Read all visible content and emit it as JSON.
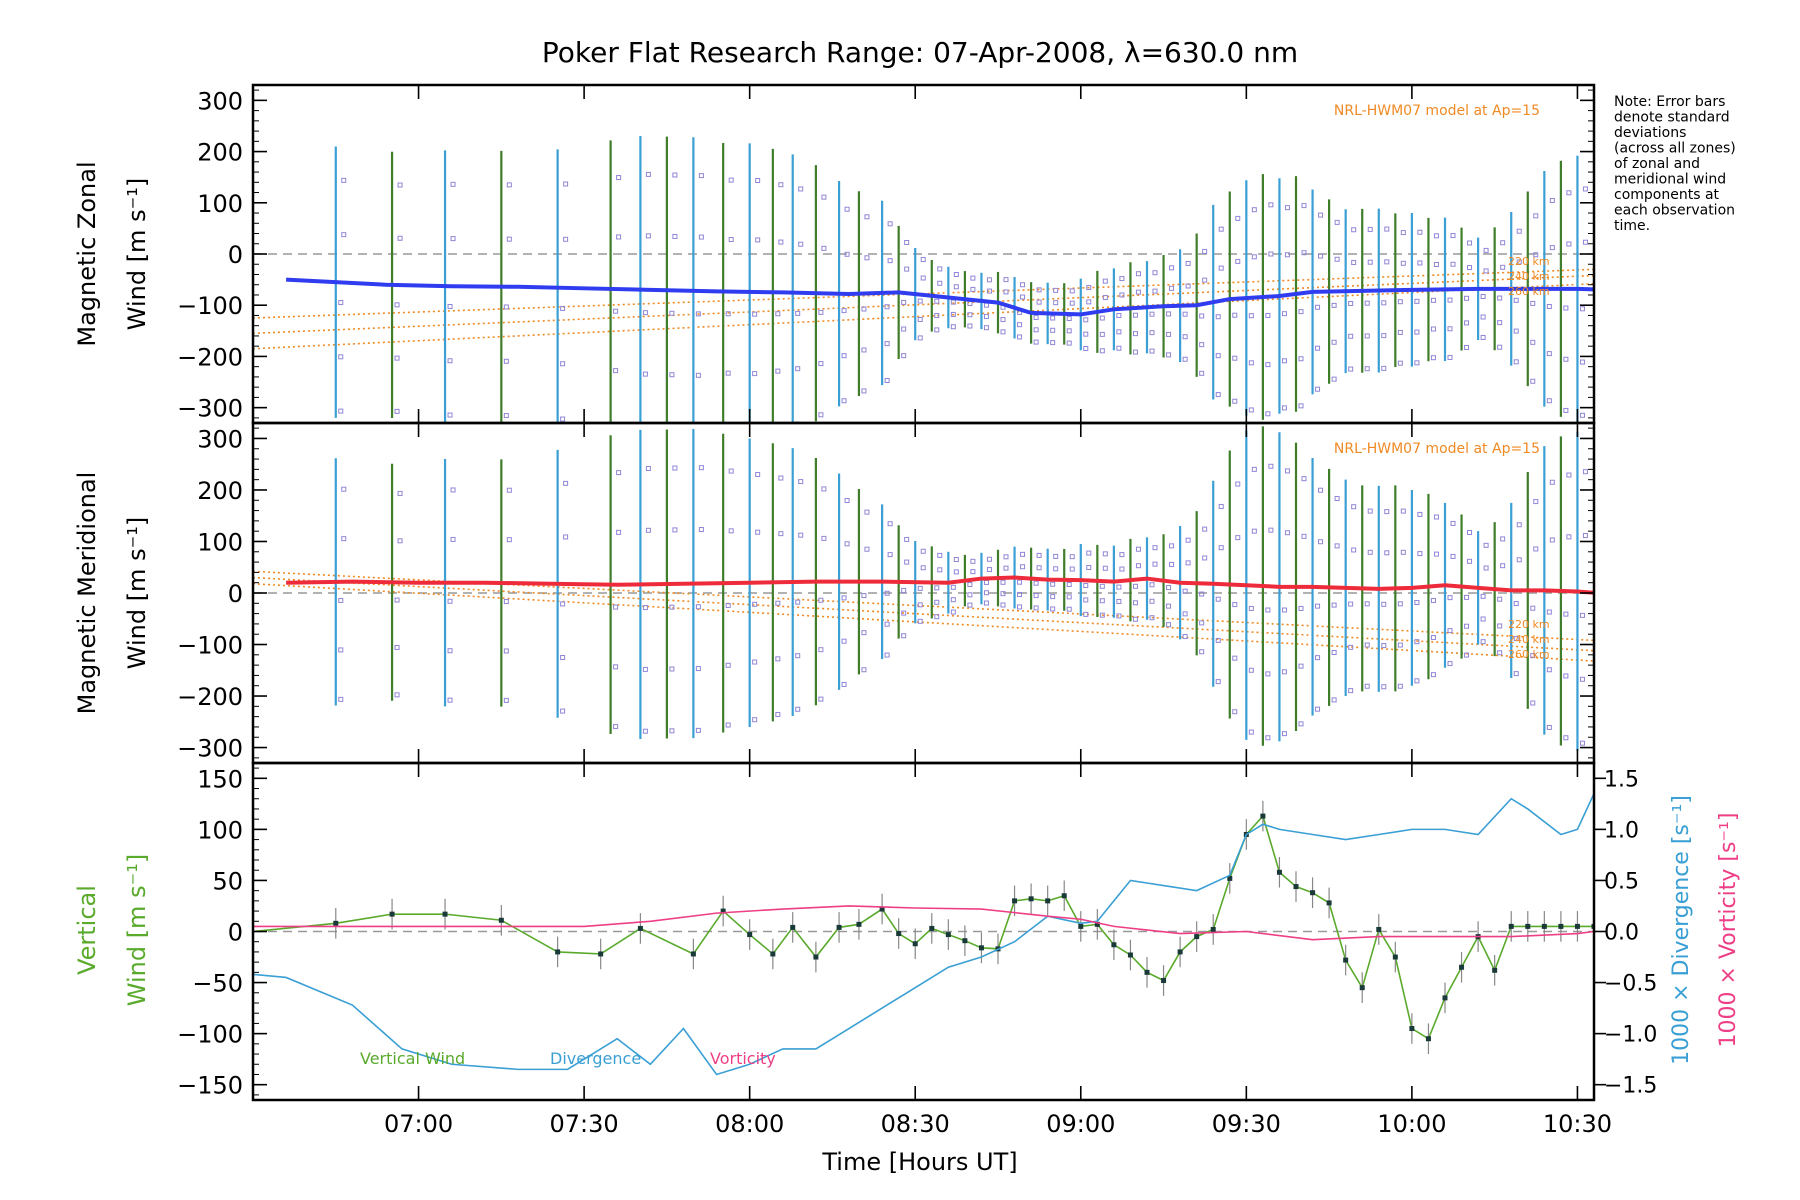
{
  "title": "Poker Flat Research Range: 07-Apr-2008, λ=630.0 nm",
  "note": [
    "Note: Error bars",
    "denote standard",
    "deviations",
    "(across all zones)",
    "of zonal and",
    "meridional wind",
    "components at",
    "each observation",
    "time."
  ],
  "colors": {
    "zonal": "#2f3cf0",
    "meridional": "#ee2b3a",
    "vertical": "#5aaa2c",
    "divergence": "#3a9fd4",
    "vorticity": "#ee3f86",
    "model": "#f08a24",
    "scatter": "#8f86d6",
    "errorbar_blue": "#3a9fd4",
    "errorbar_green": "#3f7d2a"
  },
  "chart_data": [
    {
      "type": "line",
      "panel": "zonal",
      "ylabel": [
        "Magnetic Zonal",
        "Wind [m s⁻¹]"
      ],
      "ylim": [
        -330,
        330
      ],
      "yticks": [
        "300",
        "200",
        "100",
        "0",
        "−100",
        "−200",
        "−300"
      ],
      "ytick_values": [
        300,
        200,
        100,
        0,
        -100,
        -200,
        -300
      ],
      "model_label": "NRL-HWM07 model at Ap=15",
      "model_alt_labels": [
        "220 km",
        "240 km",
        "260 km"
      ],
      "model_lines": [
        {
          "start": -125,
          "end": -30
        },
        {
          "start": -155,
          "end": -42
        },
        {
          "start": -185,
          "end": -58
        }
      ],
      "series": [
        {
          "name": "",
          "color": "zonal",
          "x": [
            6.6,
            6.9,
            7.1,
            7.3,
            7.5,
            7.7,
            7.9,
            8.1,
            8.3,
            8.45,
            8.6,
            8.75,
            8.85,
            9.0,
            9.1,
            9.25,
            9.35,
            9.45,
            9.6,
            9.7,
            9.85,
            10.0,
            10.2,
            10.35,
            10.5,
            10.6
          ],
          "y": [
            -50,
            -60,
            -63,
            -64,
            -67,
            -70,
            -73,
            -75,
            -78,
            -75,
            -85,
            -95,
            -115,
            -118,
            -108,
            -102,
            -100,
            -88,
            -82,
            -74,
            -72,
            -70,
            -68,
            -68,
            -68,
            -70
          ]
        }
      ],
      "obs_times": [
        6.75,
        6.92,
        7.08,
        7.25,
        7.42,
        7.58,
        7.67,
        7.75,
        7.83,
        7.92,
        8.0,
        8.07,
        8.13,
        8.2,
        8.27,
        8.33,
        8.4,
        8.45,
        8.5,
        8.55,
        8.6,
        8.65,
        8.7,
        8.75,
        8.8,
        8.85,
        8.9,
        8.95,
        9.0,
        9.05,
        9.1,
        9.15,
        9.2,
        9.25,
        9.3,
        9.35,
        9.4,
        9.45,
        9.5,
        9.55,
        9.6,
        9.65,
        9.7,
        9.75,
        9.8,
        9.85,
        9.9,
        9.95,
        10.0,
        10.05,
        10.1,
        10.15,
        10.2,
        10.25,
        10.3,
        10.35,
        10.4,
        10.45,
        10.5
      ],
      "error_half_widths": [
        265,
        260,
        265,
        265,
        270,
        290,
        300,
        300,
        300,
        290,
        290,
        280,
        270,
        250,
        220,
        200,
        180,
        130,
        90,
        70,
        60,
        55,
        55,
        60,
        60,
        60,
        60,
        60,
        70,
        80,
        80,
        90,
        90,
        100,
        110,
        140,
        190,
        210,
        230,
        240,
        230,
        230,
        200,
        180,
        160,
        160,
        160,
        150,
        150,
        140,
        140,
        120,
        100,
        120,
        150,
        190,
        230,
        250,
        260
      ]
    },
    {
      "type": "line",
      "panel": "meridional",
      "ylabel": [
        "Magnetic Meridional",
        "Wind [m s⁻¹]"
      ],
      "ylim": [
        -330,
        330
      ],
      "yticks": [
        "300",
        "200",
        "100",
        "0",
        "−100",
        "−200",
        "−300"
      ],
      "ytick_values": [
        300,
        200,
        100,
        0,
        -100,
        -200,
        -300
      ],
      "model_label": "NRL-HWM07 model at Ap=15",
      "model_alt_labels": [
        "220 km",
        "240 km",
        "260 km"
      ],
      "model_lines": [
        {
          "start": 42,
          "end": -92
        },
        {
          "start": 30,
          "end": -112
        },
        {
          "start": 18,
          "end": -132
        }
      ],
      "series": [
        {
          "name": "",
          "color": "meridional",
          "x": [
            6.6,
            6.8,
            7.0,
            7.2,
            7.4,
            7.6,
            7.8,
            8.0,
            8.2,
            8.4,
            8.6,
            8.7,
            8.8,
            8.9,
            9.0,
            9.1,
            9.2,
            9.3,
            9.4,
            9.5,
            9.6,
            9.7,
            9.8,
            9.9,
            10.0,
            10.1,
            10.2,
            10.3,
            10.4,
            10.5,
            10.6
          ],
          "y": [
            20,
            22,
            20,
            20,
            18,
            16,
            18,
            20,
            22,
            22,
            20,
            28,
            30,
            26,
            25,
            22,
            28,
            20,
            18,
            15,
            12,
            12,
            10,
            8,
            10,
            15,
            10,
            5,
            5,
            3,
            -2
          ]
        }
      ],
      "obs_times": [
        6.75,
        6.92,
        7.08,
        7.25,
        7.42,
        7.58,
        7.67,
        7.75,
        7.83,
        7.92,
        8.0,
        8.07,
        8.13,
        8.2,
        8.27,
        8.33,
        8.4,
        8.45,
        8.5,
        8.55,
        8.6,
        8.65,
        8.7,
        8.75,
        8.8,
        8.85,
        8.9,
        8.95,
        9.0,
        9.05,
        9.1,
        9.15,
        9.2,
        9.25,
        9.3,
        9.35,
        9.4,
        9.45,
        9.5,
        9.55,
        9.6,
        9.65,
        9.7,
        9.75,
        9.8,
        9.85,
        9.9,
        9.95,
        10.0,
        10.05,
        10.1,
        10.15,
        10.2,
        10.25,
        10.3,
        10.35,
        10.4,
        10.45,
        10.5
      ],
      "error_half_widths": [
        240,
        230,
        240,
        240,
        260,
        290,
        300,
        300,
        300,
        290,
        280,
        270,
        260,
        240,
        210,
        180,
        150,
        110,
        80,
        70,
        60,
        50,
        50,
        55,
        60,
        60,
        60,
        60,
        70,
        70,
        70,
        80,
        80,
        90,
        110,
        140,
        200,
        260,
        300,
        310,
        300,
        280,
        250,
        230,
        210,
        200,
        200,
        200,
        190,
        180,
        160,
        140,
        110,
        130,
        170,
        230,
        280,
        300,
        310
      ]
    },
    {
      "type": "line",
      "panel": "vertical",
      "ylabel_left": [
        "Vertical",
        "Wind [m s⁻¹]"
      ],
      "ylabel_right": [
        "1000 × Divergence [s⁻¹]",
        "1000 × Vorticity [s⁻¹]"
      ],
      "ylim": [
        -165,
        165
      ],
      "yticks": [
        "150",
        "100",
        "50",
        "0",
        "−50",
        "−100",
        "−150"
      ],
      "ytick_values": [
        150,
        100,
        50,
        0,
        -50,
        -100,
        -150
      ],
      "y2lim": [
        -1.65,
        1.65
      ],
      "y2ticks": [
        "1.5",
        "1.0",
        "0.5",
        "0.0",
        "−0.5",
        "−1.0",
        "−1.5"
      ],
      "y2tick_values": [
        1.5,
        1.0,
        0.5,
        0.0,
        -0.5,
        -1.0,
        -1.5
      ],
      "legend": [
        {
          "label": "Vertical Wind",
          "color": "vertical"
        },
        {
          "label": "Divergence",
          "color": "divergence"
        },
        {
          "label": "Vorticity",
          "color": "vorticity"
        }
      ],
      "series": [
        {
          "name": "Vertical Wind",
          "color": "vertical",
          "axis": "left",
          "x": [
            6.5,
            6.75,
            6.92,
            7.08,
            7.25,
            7.42,
            7.55,
            7.67,
            7.83,
            7.92,
            8.0,
            8.07,
            8.13,
            8.2,
            8.27,
            8.33,
            8.4,
            8.45,
            8.5,
            8.55,
            8.6,
            8.65,
            8.7,
            8.75,
            8.8,
            8.85,
            8.9,
            8.95,
            9.0,
            9.05,
            9.1,
            9.15,
            9.2,
            9.25,
            9.3,
            9.35,
            9.4,
            9.45,
            9.5,
            9.55,
            9.6,
            9.65,
            9.7,
            9.75,
            9.8,
            9.85,
            9.9,
            9.95,
            10.0,
            10.05,
            10.1,
            10.15,
            10.2,
            10.25,
            10.3,
            10.35,
            10.4,
            10.45,
            10.5,
            10.55
          ],
          "y": [
            0,
            8,
            17,
            17,
            11,
            -20,
            -22,
            3,
            -22,
            20,
            -3,
            -22,
            4,
            -25,
            4,
            7,
            22,
            -2,
            -12,
            3,
            -3,
            -9,
            -16,
            -17,
            30,
            32,
            30,
            35,
            5,
            7,
            -13,
            -23,
            -40,
            -48,
            -20,
            -5,
            2,
            52,
            95,
            113,
            58,
            44,
            38,
            28,
            -28,
            -55,
            2,
            -25,
            -95,
            -105,
            -65,
            -35,
            -5,
            -38,
            5,
            5,
            5,
            5,
            5,
            5
          ],
          "yerr": 15
        },
        {
          "name": "Divergence",
          "color": "divergence",
          "axis": "right",
          "x": [
            6.5,
            6.6,
            6.8,
            6.95,
            7.1,
            7.3,
            7.45,
            7.6,
            7.7,
            7.8,
            7.9,
            8.0,
            8.1,
            8.2,
            8.3,
            8.4,
            8.5,
            8.6,
            8.7,
            8.8,
            8.9,
            9.0,
            9.05,
            9.15,
            9.25,
            9.35,
            9.45,
            9.5,
            9.55,
            9.6,
            9.7,
            9.8,
            9.9,
            10.0,
            10.1,
            10.2,
            10.3,
            10.35,
            10.45,
            10.5,
            10.55
          ],
          "y": [
            -0.42,
            -0.45,
            -0.72,
            -1.15,
            -1.3,
            -1.35,
            -1.35,
            -1.05,
            -1.3,
            -0.95,
            -1.4,
            -1.3,
            -1.15,
            -1.15,
            -0.95,
            -0.75,
            -0.55,
            -0.35,
            -0.25,
            -0.1,
            0.15,
            0.08,
            0.1,
            0.5,
            0.45,
            0.4,
            0.55,
            0.95,
            1.05,
            1.0,
            0.95,
            0.9,
            0.95,
            1.0,
            1.0,
            0.95,
            1.3,
            1.2,
            0.95,
            1.0,
            1.35
          ]
        },
        {
          "name": "Vorticity",
          "color": "vorticity",
          "axis": "right",
          "x": [
            6.5,
            6.7,
            6.9,
            7.1,
            7.3,
            7.5,
            7.7,
            7.9,
            8.1,
            8.3,
            8.5,
            8.7,
            8.9,
            9.0,
            9.1,
            9.3,
            9.5,
            9.7,
            9.9,
            10.1,
            10.3,
            10.5,
            10.55
          ],
          "y": [
            0.05,
            0.05,
            0.05,
            0.05,
            0.05,
            0.05,
            0.1,
            0.18,
            0.22,
            0.25,
            0.23,
            0.22,
            0.15,
            0.12,
            0.05,
            -0.02,
            0.0,
            -0.08,
            -0.05,
            -0.05,
            -0.05,
            -0.02,
            0.0
          ]
        }
      ]
    }
  ],
  "xaxis": {
    "label": "Time [Hours UT]",
    "xlim": [
      6.5,
      10.55
    ],
    "ticks": [
      {
        "v": 7.0,
        "label": "07:00"
      },
      {
        "v": 7.5,
        "label": "07:30"
      },
      {
        "v": 8.0,
        "label": "08:00"
      },
      {
        "v": 8.5,
        "label": "08:30"
      },
      {
        "v": 9.0,
        "label": "09:00"
      },
      {
        "v": 9.5,
        "label": "09:30"
      },
      {
        "v": 10.0,
        "label": "10:00"
      },
      {
        "v": 10.5,
        "label": "10:30"
      }
    ]
  }
}
